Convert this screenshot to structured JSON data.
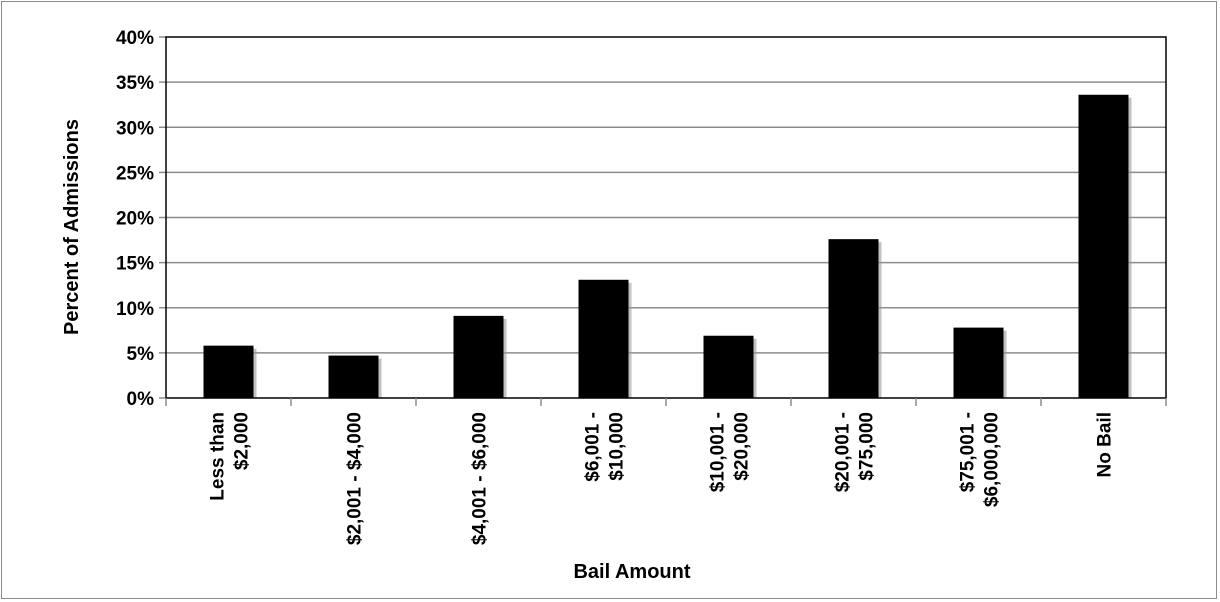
{
  "chart_data": {
    "type": "bar",
    "title": "",
    "xlabel": "Bail Amount",
    "ylabel": "Percent of Admissions",
    "ylim": [
      0,
      40
    ],
    "yticks": [
      "0%",
      "5%",
      "10%",
      "15%",
      "20%",
      "25%",
      "30%",
      "35%",
      "40%"
    ],
    "grid": true,
    "legend": "none",
    "bar_color": "#000000",
    "categories": [
      [
        "Less than",
        "$2,000"
      ],
      [
        "$2,001 - $4,000"
      ],
      [
        "$4,001 - $6,000"
      ],
      [
        "$6,001 -",
        "$10,000"
      ],
      [
        "$10,001 -",
        "$20,000"
      ],
      [
        "$20,001 -",
        "$75,000"
      ],
      [
        "$75,001 -",
        "$6,000,000"
      ],
      [
        "No Bail"
      ]
    ],
    "values": [
      5.8,
      4.7,
      9.1,
      13.1,
      6.9,
      17.6,
      7.8,
      33.6
    ]
  }
}
